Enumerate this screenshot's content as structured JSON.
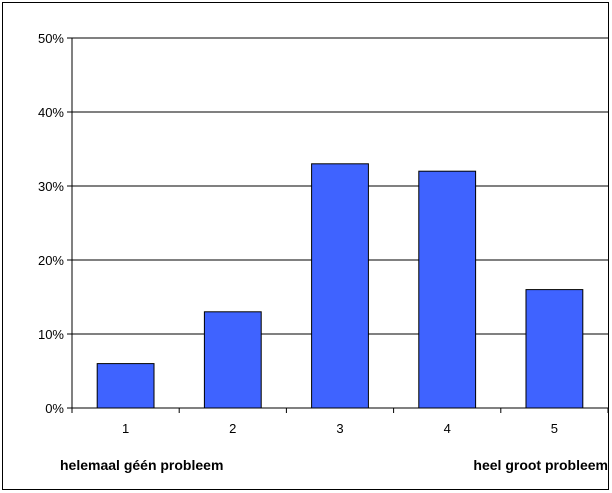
{
  "chart_data": {
    "type": "bar",
    "categories": [
      "1",
      "2",
      "3",
      "4",
      "5"
    ],
    "values": [
      6,
      13,
      33,
      32,
      16
    ],
    "title": "",
    "xlabel": "",
    "ylabel": "",
    "ylim": [
      0,
      50
    ],
    "y_ticks": [
      0,
      10,
      20,
      30,
      40,
      50
    ],
    "y_tick_labels": [
      "0%",
      "10%",
      "20%",
      "30%",
      "40%",
      "50%"
    ],
    "value_format": "percent",
    "grid": true,
    "legend": "none",
    "bar_color": "#3F63FF",
    "scale_labels": {
      "low": "helemaal géén probleem",
      "high": "heel groot probleem"
    }
  }
}
